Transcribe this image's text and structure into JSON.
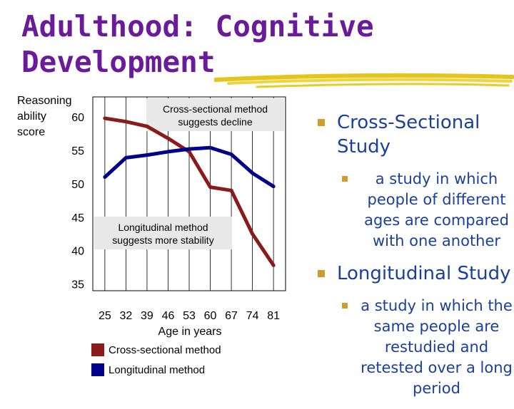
{
  "slide": {
    "title_line1": "Adulthood: Cognitive",
    "title_line2": "Development"
  },
  "colors": {
    "title": "#6a1b9a",
    "bullet_text": "#1a3f9e",
    "bullet_marker": "#d59b2a",
    "cross_sectional": "#8b1a1a",
    "longitudinal": "#00008b",
    "annotation_bg": "#e8e8e8"
  },
  "bullets": [
    {
      "heading": "Cross-Sectional Study",
      "detail": "a study in which people of different ages are compared with one another"
    },
    {
      "heading": "Longitudinal Study",
      "detail": "a study in which the same people are restudied and retested over a long period"
    }
  ],
  "chart_data": {
    "type": "line",
    "ylabel": "Reasoning ability score",
    "xlabel": "Age in years",
    "x": [
      25,
      32,
      39,
      46,
      53,
      60,
      67,
      74,
      81
    ],
    "y_ticks": [
      35,
      40,
      45,
      50,
      55,
      60
    ],
    "ylim": [
      34,
      63
    ],
    "series": [
      {
        "name": "Cross-sectional method",
        "color": "#8b1a1a",
        "values": [
          59.8,
          59.3,
          58.6,
          56.8,
          54.8,
          49.5,
          49.0,
          42.5,
          37.8
        ]
      },
      {
        "name": "Longitudinal method",
        "color": "#00008b",
        "values": [
          51.0,
          53.9,
          54.3,
          54.8,
          55.2,
          55.4,
          54.4,
          51.6,
          49.6
        ]
      }
    ],
    "annotations": [
      {
        "text_line1": "Cross-sectional method",
        "text_line2": "suggests decline"
      },
      {
        "text_line1": "Longitudinal method",
        "text_line2": "suggests more stability"
      }
    ],
    "legend_position": "bottom",
    "grid": "vertical"
  }
}
